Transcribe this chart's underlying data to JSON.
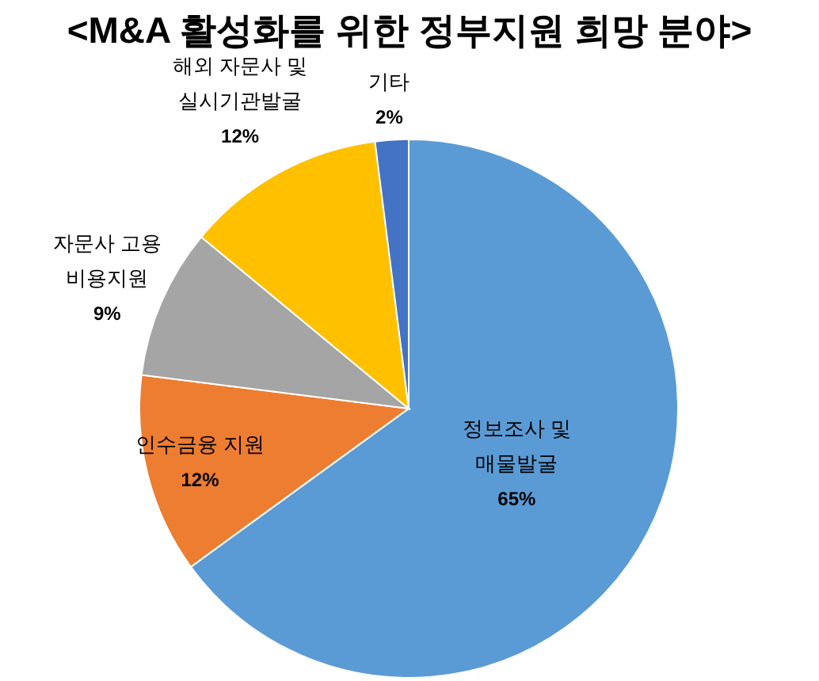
{
  "chart_data": {
    "type": "pie",
    "title": "<M&A 활성화를 위한 정부지원 희망 분야>",
    "categories": [
      "정보조사 및 매물발굴",
      "인수금융 지원",
      "자문사 고용 비용지원",
      "해외 자문사 및 실시기관발굴",
      "기타"
    ],
    "values": [
      65,
      12,
      9,
      12,
      2
    ],
    "value_labels": [
      "65%",
      "12%",
      "9%",
      "12%",
      "2%"
    ],
    "colors": [
      "#5b9bd5",
      "#ed7d31",
      "#a5a5a5",
      "#ffc000",
      "#4472c4"
    ]
  }
}
